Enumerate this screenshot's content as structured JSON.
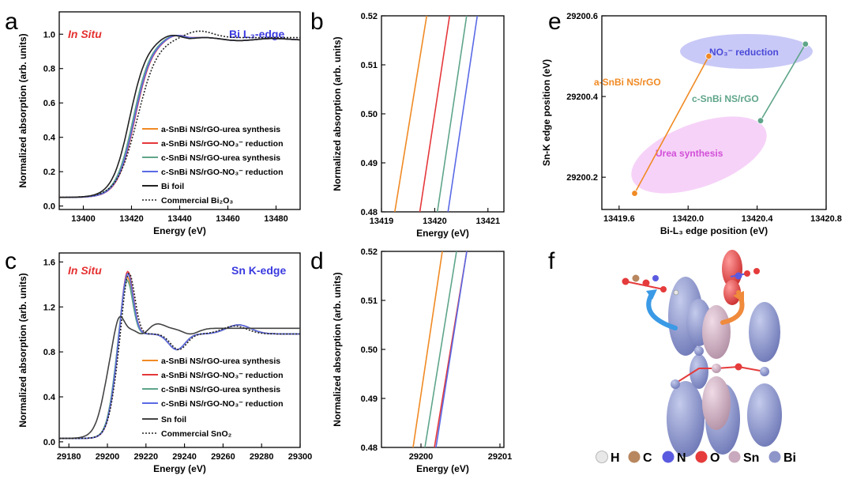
{
  "panels": {
    "a": {
      "letter": "a",
      "insitu": "In Situ",
      "edge": "Bi L₃-edge"
    },
    "b": {
      "letter": "b"
    },
    "c": {
      "letter": "c",
      "insitu": "In Situ",
      "edge": "Sn K-edge"
    },
    "d": {
      "letter": "d"
    },
    "e": {
      "letter": "e"
    },
    "f": {
      "letter": "f"
    }
  },
  "legend_a": [
    "a-SnBi NS/rGO-urea synthesis",
    "a-SnBi NS/rGO-NO₃⁻ reduction",
    "c-SnBi NS/rGO-urea synthesis",
    "c-SnBi NS/rGO-NO₃⁻ reduction",
    "Bi foil",
    "Commercial Bi₂O₃"
  ],
  "legend_c": [
    "a-SnBi NS/rGO-urea synthesis",
    "a-SnBi NS/rGO-NO₃⁻ reduction",
    "c-SnBi NS/rGO-urea synthesis",
    "c-SnBi NS/rGO-NO₃⁻ reduction",
    "Sn foil",
    "Commercial SnO₂"
  ],
  "colors": {
    "orange": "#f08a24",
    "red": "#e5383b",
    "green": "#5fa58a",
    "blue": "#5a6ae6",
    "black": "#222222"
  },
  "chart_data": [
    {
      "panel": "a",
      "type": "line",
      "xlabel": "Energy (eV)",
      "ylabel": "Normalized absorption (arb. units)",
      "xlim": [
        13390,
        13490
      ],
      "ylim": [
        -0.02,
        1.13
      ],
      "xticks": [
        13400,
        13420,
        13440,
        13460,
        13480
      ],
      "yticks": [
        "0.0",
        "0.2",
        "0.4",
        "0.6",
        "0.8",
        "1.0"
      ],
      "series": [
        {
          "name": "a-SnBi NS/rGO-urea synthesis",
          "color": "#f08a24",
          "style": "solid",
          "shift": 1.0
        },
        {
          "name": "a-SnBi NS/rGO-NO₃⁻ reduction",
          "color": "#e5383b",
          "style": "solid",
          "shift": 1.4
        },
        {
          "name": "c-SnBi NS/rGO-urea synthesis",
          "color": "#5fa58a",
          "style": "solid",
          "shift": 0.7
        },
        {
          "name": "c-SnBi NS/rGO-NO₃⁻ reduction",
          "color": "#5a6ae6",
          "style": "solid",
          "shift": 1.2
        },
        {
          "name": "Bi foil",
          "color": "#222222",
          "style": "solid",
          "shift": -0.8
        },
        {
          "name": "Commercial Bi₂O₃",
          "color": "#222222",
          "style": "dotted",
          "shift": 2.8
        }
      ]
    },
    {
      "panel": "b",
      "type": "line",
      "xlabel": "Energy (eV)",
      "ylabel": "Normalized absorption (arb. units)",
      "xlim": [
        13419,
        13421.3
      ],
      "ylim": [
        0.48,
        0.52
      ],
      "xticks": [
        13419,
        13420,
        13421
      ],
      "yticks": [
        "0.48",
        "0.49",
        "0.50",
        "0.51",
        "0.52"
      ],
      "series": [
        {
          "color": "#f08a24",
          "x": [
            13419.25,
            13419.85
          ],
          "y": [
            0.48,
            0.52
          ]
        },
        {
          "color": "#e5383b",
          "x": [
            13419.72,
            13420.28
          ],
          "y": [
            0.48,
            0.52
          ]
        },
        {
          "color": "#5fa58a",
          "x": [
            13420.05,
            13420.6
          ],
          "y": [
            0.48,
            0.52
          ]
        },
        {
          "color": "#5a6ae6",
          "x": [
            13420.25,
            13420.8
          ],
          "y": [
            0.48,
            0.52
          ]
        }
      ]
    },
    {
      "panel": "c",
      "type": "line",
      "xlabel": "Energy (eV)",
      "ylabel": "Normalized absorption (arb. units)",
      "xlim": [
        29175,
        29300
      ],
      "ylim": [
        -0.05,
        1.68
      ],
      "xticks": [
        29180,
        29200,
        29220,
        29240,
        29260,
        29280,
        29300
      ],
      "yticks": [
        "0.0",
        "0.4",
        "0.8",
        "1.2",
        "1.6"
      ],
      "series": [
        {
          "name": "a-SnBi NS/rGO-urea synthesis",
          "color": "#f08a24",
          "style": "solid"
        },
        {
          "name": "a-SnBi NS/rGO-NO₃⁻ reduction",
          "color": "#e5383b",
          "style": "solid"
        },
        {
          "name": "c-SnBi NS/rGO-urea synthesis",
          "color": "#5fa58a",
          "style": "solid"
        },
        {
          "name": "c-SnBi NS/rGO-NO₃⁻ reduction",
          "color": "#5a6ae6",
          "style": "solid"
        },
        {
          "name": "Sn foil",
          "color": "#444444",
          "style": "solid"
        },
        {
          "name": "Commercial SnO₂",
          "color": "#222222",
          "style": "dotted"
        }
      ]
    },
    {
      "panel": "d",
      "type": "line",
      "xlabel": "Energy (eV)",
      "ylabel": "Normalized absorption (arb. units)",
      "xlim": [
        29199.5,
        29201.05
      ],
      "ylim": [
        0.48,
        0.52
      ],
      "xticks": [
        29200,
        29201
      ],
      "yticks": [
        "0.48",
        "0.49",
        "0.50",
        "0.51",
        "0.52"
      ],
      "series": [
        {
          "color": "#f08a24",
          "x": [
            29199.9,
            29200.27
          ],
          "y": [
            0.48,
            0.52
          ]
        },
        {
          "color": "#5fa58a",
          "x": [
            29200.05,
            29200.45
          ],
          "y": [
            0.48,
            0.52
          ]
        },
        {
          "color": "#e5383b",
          "x": [
            29200.17,
            29200.58
          ],
          "y": [
            0.48,
            0.52
          ]
        },
        {
          "color": "#5a6ae6",
          "x": [
            29200.19,
            29200.58
          ],
          "y": [
            0.48,
            0.52
          ]
        }
      ]
    },
    {
      "panel": "e",
      "type": "scatter",
      "xlabel": "Bi-L₃ edge position (eV)",
      "ylabel": "Sn-K edge position (eV)",
      "xlim": [
        13419.5,
        13420.8
      ],
      "ylim": [
        29200.12,
        29200.6
      ],
      "xticks": [
        "13419.6",
        "13420.0",
        "13420.4",
        "13420.8"
      ],
      "yticks": [
        "29200.2",
        "29200.4",
        "29200.6"
      ],
      "series": [
        {
          "name": "a-SnBi NS/rGO",
          "color": "#f08a24",
          "x": [
            13419.69,
            13420.12
          ],
          "y": [
            29200.16,
            29200.5
          ]
        },
        {
          "name": "c-SnBi NS/rGO",
          "color": "#5fa58a",
          "x": [
            13420.42,
            13420.68
          ],
          "y": [
            29200.34,
            29200.53
          ]
        }
      ],
      "annotations": {
        "no3": "NO₃⁻ reduction",
        "urea": "Urea synthesis",
        "a": "a-SnBi NS/rGO",
        "c": "c-SnBi NS/rGO"
      }
    }
  ],
  "atoms_legend": [
    {
      "symbol": "H",
      "color": "#e8e8e8"
    },
    {
      "symbol": "C",
      "color": "#b8875f"
    },
    {
      "symbol": "N",
      "color": "#5a5ae0"
    },
    {
      "symbol": "O",
      "color": "#e53b3b"
    },
    {
      "symbol": "Sn",
      "color": "#c9a9bd"
    },
    {
      "symbol": "Bi",
      "color": "#8d95c9"
    }
  ]
}
